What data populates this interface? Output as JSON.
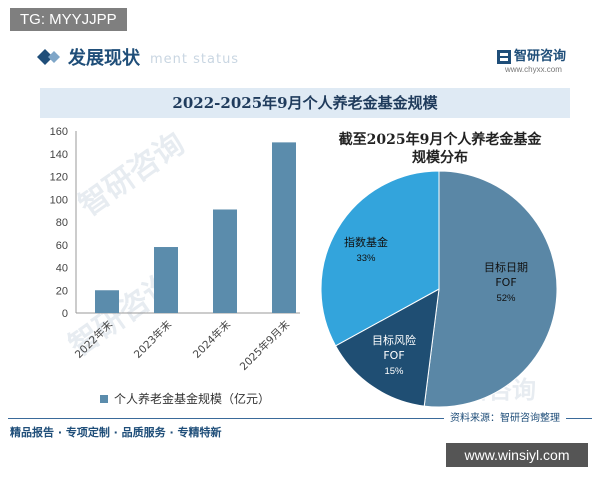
{
  "badge": "TG: MYYJJPP",
  "header": {
    "title": "发展现状",
    "watermark": "ment status",
    "brand_name": "智研咨询",
    "brand_url": "www.chyxx.com"
  },
  "chart_data": [
    {
      "type": "bar",
      "title": "2022-2025年9月个人养老金基金规模",
      "categories": [
        "2022年末",
        "2023年末",
        "2024年末",
        "2025年9月末"
      ],
      "series": [
        {
          "name": "个人养老金基金规模（亿元）",
          "values": [
            20,
            58,
            91,
            150
          ]
        }
      ],
      "yticks": [
        "0",
        "20",
        "40",
        "60",
        "80",
        "100",
        "120",
        "140",
        "160"
      ],
      "ylim": [
        0,
        160
      ],
      "color": "#5b8cac",
      "grid": false,
      "legend": "bottom"
    },
    {
      "type": "pie",
      "title_lines": [
        "截至2025年9月个人养老金基金",
        "规模分布"
      ],
      "slices": [
        {
          "label_lines": [
            "目标日期",
            "FOF"
          ],
          "pct": "52%",
          "value": 52,
          "color": "#5a87a6"
        },
        {
          "label_lines": [
            "目标风险",
            "FOF"
          ],
          "pct": "15%",
          "value": 15,
          "color": "#1f4e73"
        },
        {
          "label_lines": [
            "指数基金"
          ],
          "pct": "33%",
          "value": 33,
          "color": "#33a4dc"
        }
      ]
    }
  ],
  "footer": {
    "tagline": "精品报告 · 专项定制 · 品质服务 · 专精特新",
    "source": "资料来源：智研咨询整理",
    "watermark_url": "www.winsiyl.com"
  },
  "watermarks": [
    "智研咨询",
    "智研咨询",
    "智研咨询"
  ]
}
